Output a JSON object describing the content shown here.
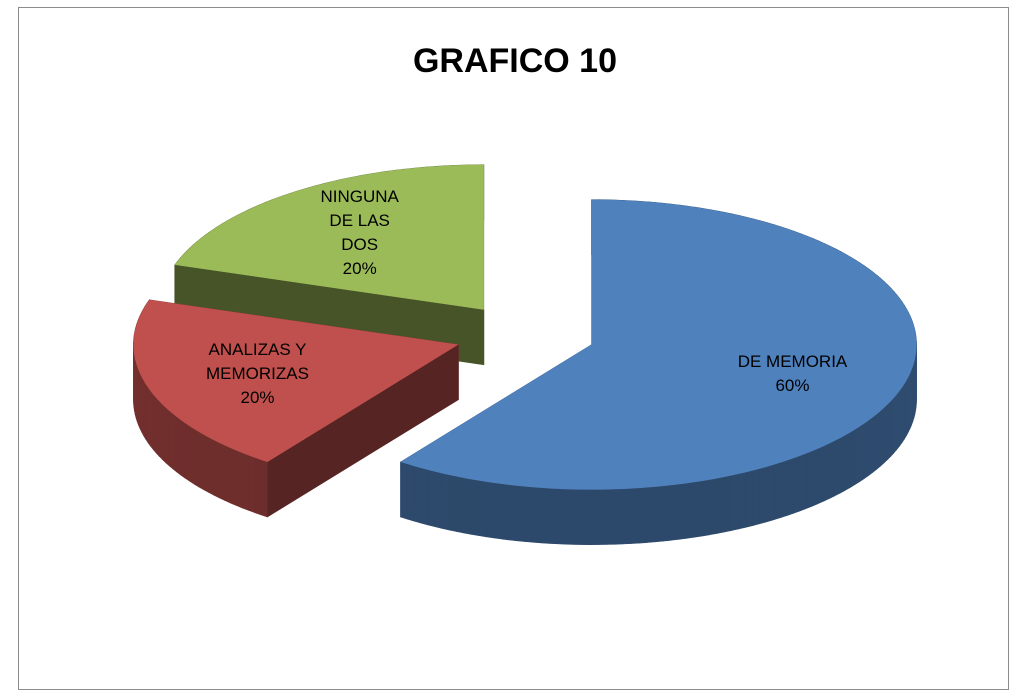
{
  "chart_data": {
    "type": "pie",
    "title": "GRAFICO 10",
    "categories": [
      "DE MEMORIA",
      "ANALIZAS Y MEMORIZAS",
      "NINGUNA DE LAS DOS"
    ],
    "values": [
      60,
      20,
      20
    ],
    "value_labels": [
      "60%",
      "20%",
      "20%"
    ],
    "colors": [
      "#4f81bd",
      "#c0504d",
      "#9bbb59"
    ]
  }
}
